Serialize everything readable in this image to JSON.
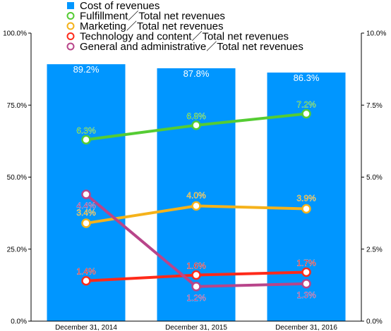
{
  "chart_data": {
    "type": "bar",
    "categories": [
      "December 31, 2014",
      "December 31, 2015",
      "December 31, 2016"
    ],
    "bars": {
      "name": "Cost of revenues",
      "values": [
        89.2,
        87.8,
        86.3
      ],
      "labels": [
        "89.2%",
        "87.8%",
        "86.3%"
      ],
      "color": "#0096ff"
    },
    "series": [
      {
        "name": "Fulfillment／Total net revenues",
        "values": [
          6.3,
          6.8,
          7.2
        ],
        "labels": [
          "6.3%",
          "6.8%",
          "7.2%"
        ],
        "color": "#55cc33"
      },
      {
        "name": "Marketing／Total net revenues",
        "values": [
          3.4,
          4.0,
          3.9
        ],
        "labels": [
          "3.4%",
          "4.0%",
          "3.9%"
        ],
        "color": "#f5b21a"
      },
      {
        "name": "Technology and content／Total net revenues",
        "values": [
          1.4,
          1.6,
          1.7
        ],
        "labels": [
          "1.4%",
          "1.6%",
          "1.7%"
        ],
        "color": "#ff2a1a"
      },
      {
        "name": "General and administrative／Total net revenues",
        "values": [
          4.4,
          1.2,
          1.3
        ],
        "labels": [
          "4.4%",
          "1.2%",
          "1.3%"
        ],
        "color": "#b8458a"
      }
    ],
    "y_left": {
      "ylim": [
        0,
        100
      ],
      "ticks": [
        "0.0%",
        "25.0%",
        "50.0%",
        "75.0%",
        "100.0%"
      ]
    },
    "y_right": {
      "ylim": [
        0,
        10
      ],
      "ticks": [
        "0.0%",
        "2.5%",
        "5.0%",
        "7.5%",
        "10.0%"
      ]
    },
    "legend_position": "top"
  }
}
